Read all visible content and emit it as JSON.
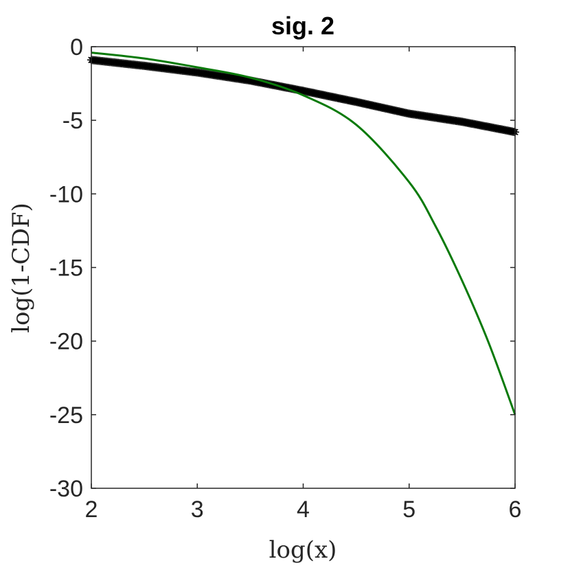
{
  "chart_data": {
    "type": "line",
    "title": "sig. 2",
    "xlabel": "log(x)",
    "ylabel": "log(1-CDF)",
    "xlim": [
      2,
      6
    ],
    "ylim": [
      -30,
      0
    ],
    "xticks": [
      2,
      3,
      4,
      5,
      6
    ],
    "yticks": [
      0,
      -5,
      -10,
      -15,
      -20,
      -25,
      -30
    ],
    "xtick_labels": [
      "2",
      "3",
      "4",
      "5",
      "6"
    ],
    "ytick_labels": [
      "0",
      "-5",
      "-10",
      "-15",
      "-20",
      "-25",
      "-30"
    ],
    "grid": false,
    "box": true,
    "series": [
      {
        "kind": "empirical-markers",
        "marker": "asterisk",
        "color": "#000000",
        "x": [
          2.0,
          2.5,
          3.0,
          3.5,
          4.0,
          4.5,
          5.0,
          5.5,
          6.0
        ],
        "y": [
          -0.9,
          -1.3,
          -1.75,
          -2.3,
          -3.0,
          -3.75,
          -4.55,
          -5.1,
          -5.8
        ]
      },
      {
        "kind": "fitted-curve",
        "color": "#0a7a0a",
        "x": [
          2.0,
          2.5,
          3.0,
          3.5,
          4.0,
          4.5,
          5.0,
          5.25,
          5.5,
          5.75,
          6.0
        ],
        "y": [
          -0.4,
          -0.8,
          -1.4,
          -2.1,
          -3.3,
          -5.3,
          -9.2,
          -12.2,
          -15.9,
          -20.1,
          -25.0
        ]
      }
    ]
  }
}
